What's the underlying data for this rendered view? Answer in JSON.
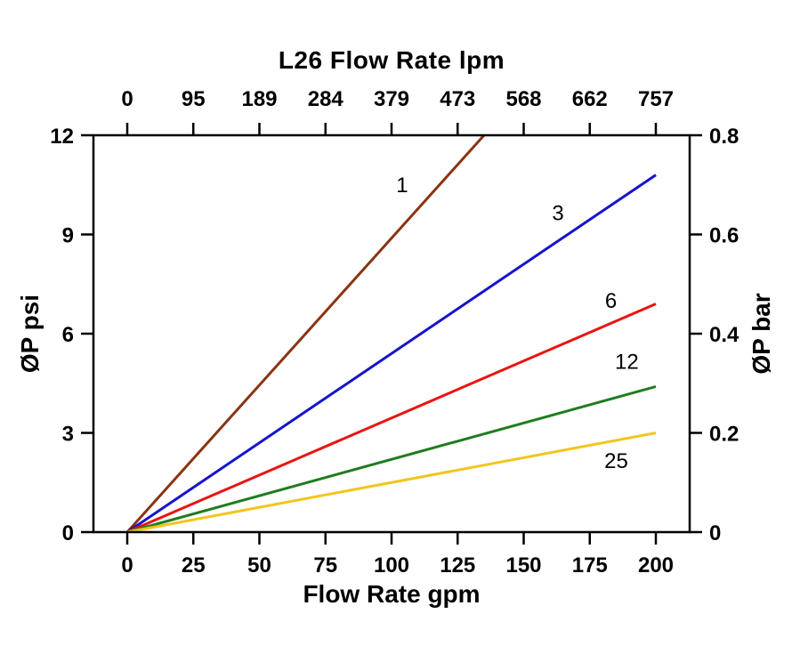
{
  "chart_data": {
    "type": "line",
    "title": "L26 Flow Rate lpm",
    "axes": {
      "bottom": {
        "label": "Flow Rate gpm",
        "ticks": [
          0,
          25,
          50,
          75,
          100,
          125,
          150,
          175,
          200
        ],
        "range": [
          0,
          200
        ]
      },
      "top": {
        "label": "L26 Flow Rate lpm",
        "tick_labels": [
          "0",
          "95",
          "189",
          "284",
          "379",
          "473",
          "568",
          "662",
          "757"
        ],
        "unit": "lpm"
      },
      "left": {
        "label": "ØP psi",
        "ticks": [
          0,
          3,
          6,
          9,
          12
        ],
        "range": [
          0,
          12
        ]
      },
      "right": {
        "label": "ØP bar",
        "tick_labels": [
          "0",
          "0.2",
          "0.4",
          "0.6",
          "0.8"
        ],
        "tick_psi_positions": [
          0,
          3,
          6,
          9,
          12
        ]
      },
      "grid": false
    },
    "legend_position": "inline-labels",
    "series": [
      {
        "name": "1",
        "color": "#8a3412",
        "points": [
          [
            0,
            0
          ],
          [
            135,
            12
          ]
        ],
        "label_pos": [
          104,
          10.5
        ]
      },
      {
        "name": "3",
        "color": "#1515cc",
        "points": [
          [
            0,
            0
          ],
          [
            200,
            10.8
          ]
        ],
        "label_pos": [
          163,
          9.65
        ]
      },
      {
        "name": "6",
        "color": "#e81511",
        "points": [
          [
            0,
            0
          ],
          [
            200,
            6.9
          ]
        ],
        "label_pos": [
          183,
          7.0
        ]
      },
      {
        "name": "12",
        "color": "#1f7d1f",
        "points": [
          [
            0,
            0
          ],
          [
            200,
            4.4
          ]
        ],
        "label_pos": [
          189,
          5.15
        ]
      },
      {
        "name": "25",
        "color": "#f2c51d",
        "points": [
          [
            0,
            0
          ],
          [
            200,
            3.0
          ]
        ],
        "label_pos": [
          185,
          2.15
        ]
      }
    ]
  }
}
